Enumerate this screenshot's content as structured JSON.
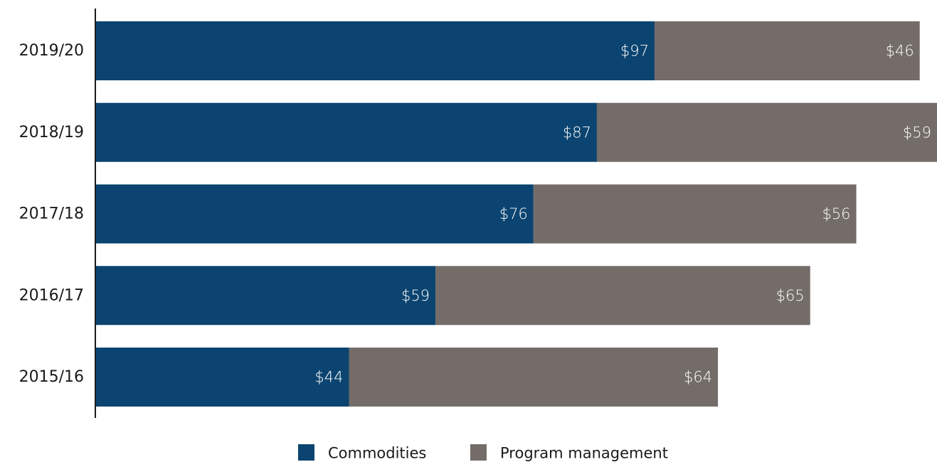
{
  "chart_data": {
    "type": "bar",
    "orientation": "horizontal",
    "stacked": true,
    "categories": [
      "2019/20",
      "2018/19",
      "2017/18",
      "2016/17",
      "2015/16"
    ],
    "series": [
      {
        "name": "Commodities",
        "values": [
          97,
          87,
          76,
          59,
          44
        ],
        "color": "#0b4470"
      },
      {
        "name": "Program management",
        "values": [
          46,
          59,
          56,
          65,
          64
        ],
        "color": "#736c68"
      }
    ],
    "value_prefix": "$",
    "xlim": [
      0,
      146
    ],
    "grid": false,
    "legend": "bottom-center",
    "title": "",
    "xlabel": "",
    "ylabel": ""
  }
}
